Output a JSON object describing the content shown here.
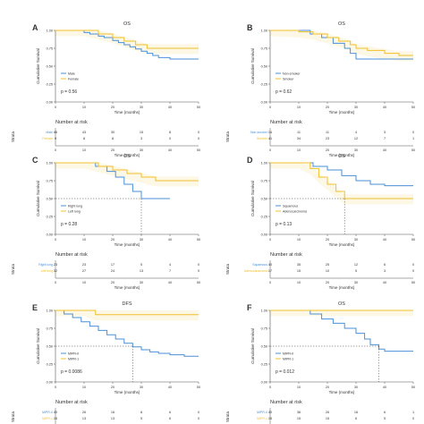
{
  "colors": {
    "series1": "#4a90d9",
    "series2": "#f0c02a",
    "text": "#333333",
    "axis": "#555555"
  },
  "chart_data": [
    {
      "panel": "A",
      "type": "line",
      "title": "OS",
      "xlabel": "Time (months)",
      "ylabel": "Cumulative Survival",
      "xlim": [
        0,
        50
      ],
      "ylim": [
        0,
        1.0
      ],
      "xticks": [
        "0",
        "10",
        "20",
        "30",
        "40",
        "50"
      ],
      "yticks": [
        "0.00",
        "0.25",
        "0.50",
        "0.75",
        "1.00"
      ],
      "pvalue": "p = 0.56",
      "series": [
        {
          "name": "Male",
          "color": "#4a90d9",
          "x": [
            0,
            5,
            10,
            12,
            15,
            17,
            20,
            22,
            24,
            26,
            28,
            30,
            32,
            34,
            36,
            40,
            45,
            50
          ],
          "y": [
            1.0,
            1.0,
            0.97,
            0.95,
            0.92,
            0.9,
            0.86,
            0.83,
            0.8,
            0.77,
            0.74,
            0.71,
            0.68,
            0.65,
            0.62,
            0.6,
            0.6,
            0.6
          ]
        },
        {
          "name": "Female",
          "color": "#f0c02a",
          "x": [
            0,
            10,
            15,
            20,
            24,
            28,
            32,
            50
          ],
          "y": [
            1.0,
            1.0,
            0.95,
            0.9,
            0.85,
            0.8,
            0.75,
            0.75
          ]
        }
      ],
      "risk_title": "Number at risk",
      "risk_label": "Strata",
      "risk_times": [
        "0",
        "10",
        "20",
        "30",
        "40",
        "50"
      ],
      "risk_rows": [
        {
          "label": "Male",
          "values": [
            "46",
            "43",
            "30",
            "15",
            "8",
            "0"
          ]
        },
        {
          "label": "Female",
          "values": [
            "9",
            "8",
            "8",
            "3",
            "0",
            "0"
          ]
        }
      ]
    },
    {
      "panel": "B",
      "type": "line",
      "title": "OS",
      "xlabel": "Time (months)",
      "ylabel": "Cumulative Survival",
      "xlim": [
        0,
        50
      ],
      "ylim": [
        0,
        1.0
      ],
      "xticks": [
        "0",
        "10",
        "20",
        "30",
        "40",
        "50"
      ],
      "yticks": [
        "0.00",
        "0.25",
        "0.50",
        "0.75",
        "1.00"
      ],
      "pvalue": "p = 0.62",
      "series": [
        {
          "name": "Non-smoker",
          "color": "#4a90d9",
          "x": [
            0,
            10,
            14,
            18,
            22,
            26,
            28,
            30,
            50
          ],
          "y": [
            1.0,
            1.0,
            0.95,
            0.9,
            0.82,
            0.75,
            0.68,
            0.6,
            0.6
          ]
        },
        {
          "name": "Smoker",
          "color": "#f0c02a",
          "x": [
            0,
            10,
            15,
            20,
            24,
            28,
            30,
            34,
            40,
            45,
            50
          ],
          "y": [
            1.0,
            0.98,
            0.95,
            0.9,
            0.85,
            0.8,
            0.75,
            0.72,
            0.68,
            0.65,
            0.65
          ]
        }
      ],
      "risk_title": "Number at risk",
      "risk_label": "Strata",
      "risk_times": [
        "0",
        "10",
        "20",
        "30",
        "40",
        "50"
      ],
      "risk_rows": [
        {
          "label": "Non-smoker",
          "values": [
            "14",
            "11",
            "11",
            "4",
            "3",
            "0"
          ]
        },
        {
          "label": "Smoker",
          "values": [
            "41",
            "34",
            "23",
            "12",
            "7",
            "1"
          ]
        }
      ]
    },
    {
      "panel": "C",
      "type": "line",
      "title": "OS",
      "xlabel": "Time (months)",
      "ylabel": "Cumulative Survival",
      "xlim": [
        0,
        50
      ],
      "ylim": [
        0,
        1.0
      ],
      "xticks": [
        "0",
        "10",
        "20",
        "30",
        "40",
        "50"
      ],
      "yticks": [
        "0.00",
        "0.25",
        "0.50",
        "0.75",
        "1.00"
      ],
      "pvalue": "p = 0.28",
      "series": [
        {
          "name": "Right lung",
          "color": "#4a90d9",
          "x": [
            0,
            10,
            14,
            18,
            21,
            24,
            27,
            30,
            40
          ],
          "y": [
            1.0,
            1.0,
            0.95,
            0.88,
            0.8,
            0.7,
            0.6,
            0.5,
            0.5
          ]
        },
        {
          "name": "Left lung",
          "color": "#f0c02a",
          "x": [
            0,
            10,
            15,
            20,
            25,
            30,
            35,
            50
          ],
          "y": [
            1.0,
            1.0,
            0.95,
            0.9,
            0.85,
            0.8,
            0.75,
            0.75
          ]
        }
      ],
      "risk_title": "Number at risk",
      "risk_label": "Strata",
      "risk_times": [
        "0",
        "10",
        "20",
        "30",
        "40",
        "50"
      ],
      "risk_rows": [
        {
          "label": "Right lung",
          "values": [
            "23",
            "23",
            "17",
            "5",
            "4",
            "0"
          ]
        },
        {
          "label": "Left lung",
          "values": [
            "32",
            "27",
            "24",
            "13",
            "7",
            "0"
          ]
        }
      ]
    },
    {
      "panel": "D",
      "type": "line",
      "title": "OS",
      "xlabel": "Time (months)",
      "ylabel": "Cumulative Survival",
      "xlim": [
        0,
        50
      ],
      "ylim": [
        0,
        1.0
      ],
      "xticks": [
        "0",
        "10",
        "20",
        "30",
        "40",
        "50"
      ],
      "yticks": [
        "0.00",
        "0.25",
        "0.50",
        "0.75",
        "1.00"
      ],
      "pvalue": "p = 0.13",
      "series": [
        {
          "name": "Squamous",
          "color": "#4a90d9",
          "x": [
            0,
            10,
            15,
            20,
            25,
            30,
            35,
            40,
            50
          ],
          "y": [
            1.0,
            1.0,
            0.95,
            0.9,
            0.82,
            0.75,
            0.7,
            0.68,
            0.68
          ]
        },
        {
          "name": "Adenocarcinoma",
          "color": "#f0c02a",
          "x": [
            0,
            10,
            14,
            17,
            20,
            23,
            26,
            50
          ],
          "y": [
            1.0,
            1.0,
            0.92,
            0.8,
            0.7,
            0.6,
            0.5,
            0.5
          ]
        }
      ],
      "risk_title": "Number at risk",
      "risk_label": "Strata",
      "risk_times": [
        "0",
        "10",
        "20",
        "30",
        "40",
        "50"
      ],
      "risk_rows": [
        {
          "label": "Squamous",
          "values": [
            "40",
            "35",
            "25",
            "12",
            "6",
            "0"
          ]
        },
        {
          "label": "Adenocarcinoma",
          "values": [
            "17",
            "15",
            "10",
            "5",
            "3",
            "0"
          ]
        }
      ]
    },
    {
      "panel": "E",
      "type": "line",
      "title": "DFS",
      "xlabel": "Time (months)",
      "ylabel": "Cumulative Survival",
      "xlim": [
        0,
        50
      ],
      "ylim": [
        0,
        1.0
      ],
      "xticks": [
        "0",
        "10",
        "20",
        "30",
        "40",
        "50"
      ],
      "yticks": [
        "0.00",
        "0.25",
        "0.50",
        "0.75",
        "1.00"
      ],
      "pvalue": "p = 0.0086",
      "series": [
        {
          "name": "MIPR-0",
          "color": "#4a90d9",
          "x": [
            0,
            3,
            6,
            9,
            12,
            15,
            18,
            21,
            24,
            27,
            30,
            33,
            36,
            40,
            45,
            50
          ],
          "y": [
            1.0,
            0.95,
            0.9,
            0.84,
            0.78,
            0.72,
            0.66,
            0.6,
            0.54,
            0.49,
            0.45,
            0.42,
            0.4,
            0.38,
            0.36,
            0.36
          ]
        },
        {
          "name": "MIPR-1",
          "color": "#f0c02a",
          "x": [
            0,
            10,
            14,
            50
          ],
          "y": [
            1.0,
            1.0,
            0.94,
            0.94
          ]
        }
      ],
      "risk_title": "Number at risk",
      "risk_label": "Strata",
      "risk_times": [
        "0",
        "10",
        "20",
        "30",
        "40",
        "50"
      ],
      "risk_rows": [
        {
          "label": "MIPR-0",
          "values": [
            "40",
            "26",
            "16",
            "8",
            "6",
            "0"
          ]
        },
        {
          "label": "MIPR-1",
          "values": [
            "15",
            "13",
            "13",
            "5",
            "6",
            "0"
          ]
        }
      ]
    },
    {
      "panel": "F",
      "type": "line",
      "title": "OS",
      "xlabel": "Time (months)",
      "ylabel": "Cumulative Survival",
      "xlim": [
        0,
        50
      ],
      "ylim": [
        0,
        1.0
      ],
      "xticks": [
        "0",
        "10",
        "20",
        "30",
        "40",
        "50"
      ],
      "yticks": [
        "0.00",
        "0.25",
        "0.50",
        "0.75",
        "1.00"
      ],
      "pvalue": "p = 0.012",
      "series": [
        {
          "name": "MIPR-0",
          "color": "#4a90d9",
          "x": [
            0,
            10,
            14,
            18,
            22,
            26,
            30,
            33,
            35,
            38,
            40,
            50
          ],
          "y": [
            1.0,
            1.0,
            0.95,
            0.88,
            0.82,
            0.75,
            0.68,
            0.6,
            0.52,
            0.46,
            0.43,
            0.43
          ]
        },
        {
          "name": "MIPR-1",
          "color": "#f0c02a",
          "x": [
            0,
            50
          ],
          "y": [
            1.0,
            1.0
          ]
        }
      ],
      "risk_title": "Number at risk",
      "risk_label": "Strata",
      "risk_times": [
        "0",
        "10",
        "20",
        "30",
        "40",
        "50"
      ],
      "risk_rows": [
        {
          "label": "MIPR-0",
          "values": [
            "40",
            "36",
            "26",
            "16",
            "6",
            "1"
          ]
        },
        {
          "label": "MIPR-1",
          "values": [
            "15",
            "15",
            "15",
            "6",
            "5",
            "0"
          ]
        }
      ]
    }
  ]
}
